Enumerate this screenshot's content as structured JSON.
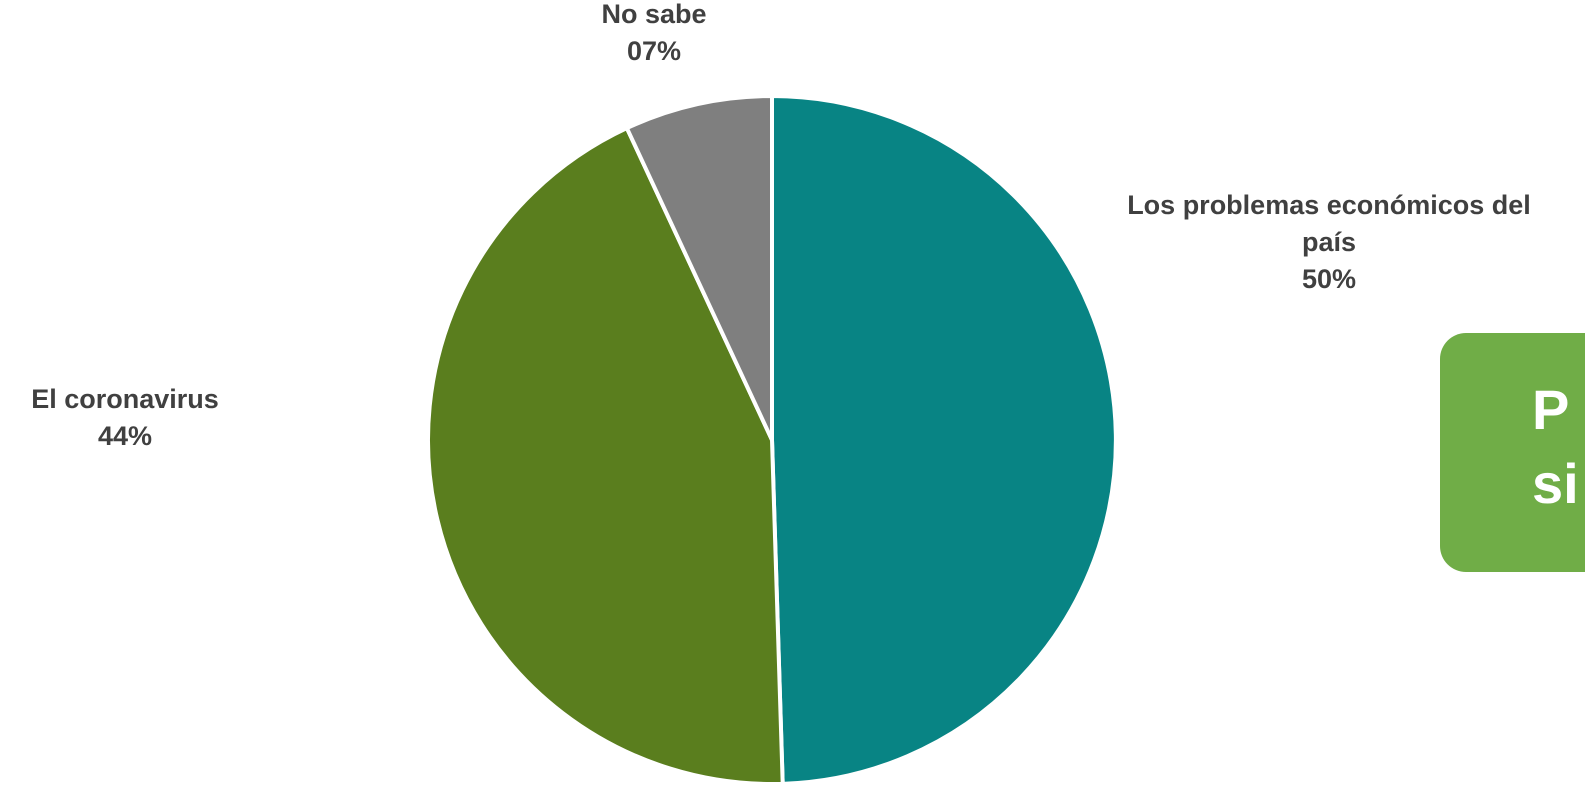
{
  "chart_data": {
    "type": "pie",
    "title": "",
    "start_angle_deg": 0,
    "direction": "clockwise",
    "slices": [
      {
        "label_lines": [
          "Los problemas económicos del",
          "país"
        ],
        "value_label": "50%",
        "value": 50,
        "color": "#088484"
      },
      {
        "label_lines": [
          "El coronavirus"
        ],
        "value_label": "44%",
        "value": 44,
        "color": "#5a7e1e"
      },
      {
        "label_lines": [
          "No sabe"
        ],
        "value_label": "07%",
        "value": 7,
        "color": "#7f7f7f"
      }
    ],
    "legend": false
  },
  "callout": {
    "text_lines": [
      "P",
      "si"
    ],
    "fill": "#70ad47",
    "text_color": "#ffffff"
  }
}
